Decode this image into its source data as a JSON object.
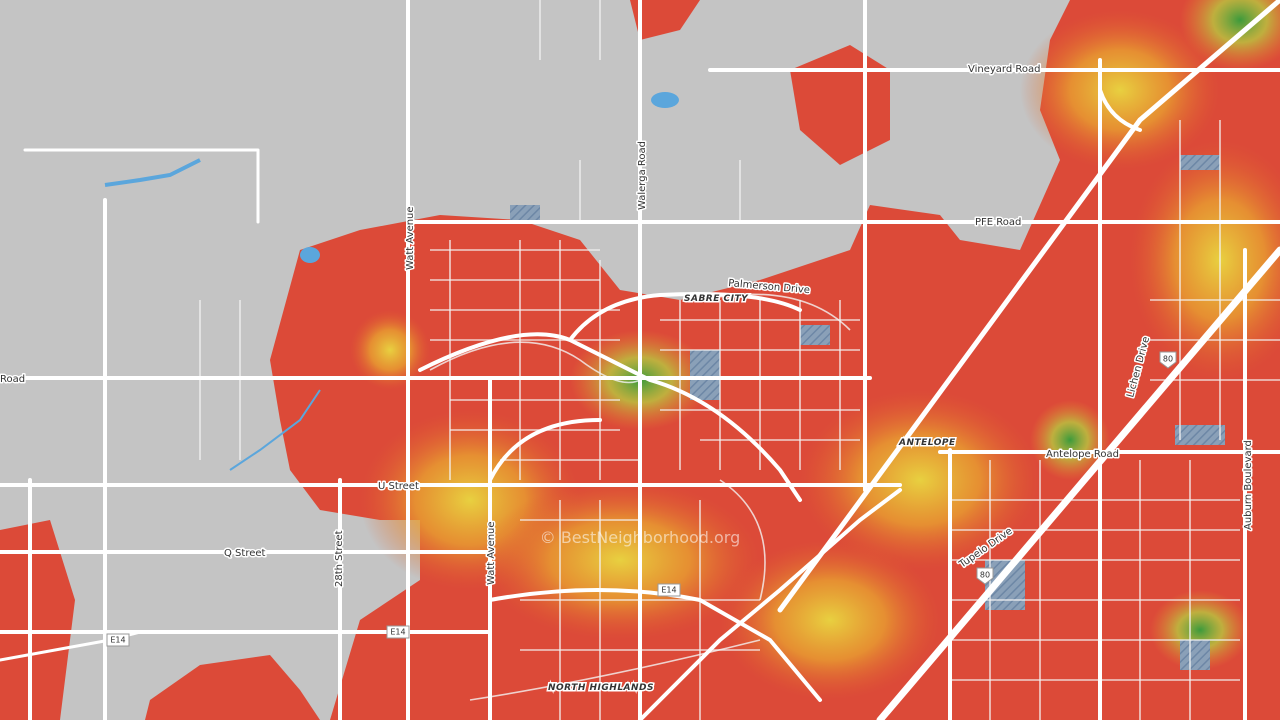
{
  "map": {
    "road_labels": [
      "Vineyard Road",
      "PFE Road",
      "Walerga Road",
      "Watt Avenue",
      "Palmerson Drive",
      "Road",
      "U Street",
      "Q Street",
      "28th Street",
      "Watt Avenue",
      "Antelope Road",
      "Lichen Drive",
      "Auburn Boulevard",
      "Tupelo Drive"
    ],
    "place_labels": [
      "SABRE CITY",
      "ANTELOPE",
      "NORTH HIGHLANDS"
    ],
    "shields": [
      "E14",
      "E14",
      "E14",
      "80",
      "80"
    ],
    "watermark": "© BestNeighborhood.org"
  }
}
